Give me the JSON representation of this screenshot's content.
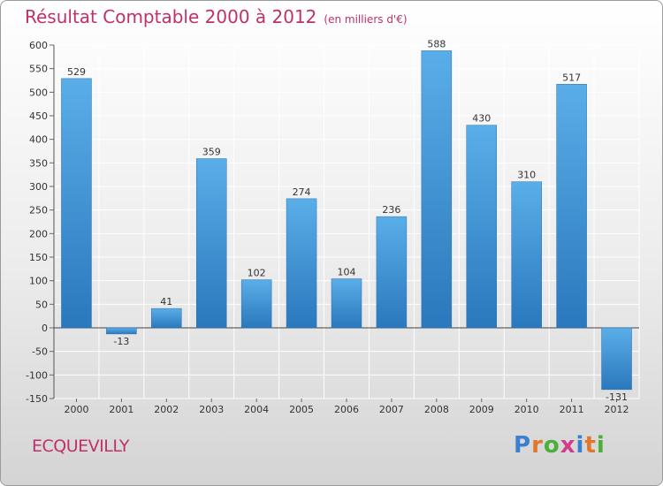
{
  "chart_data": {
    "type": "bar",
    "title": "Résultat Comptable 2000 à 2012",
    "subtitle": "(en milliers d'€)",
    "categories": [
      "2000",
      "2001",
      "2002",
      "2003",
      "2004",
      "2005",
      "2006",
      "2007",
      "2008",
      "2009",
      "2010",
      "2011",
      "2012"
    ],
    "values": [
      529,
      -13,
      41,
      359,
      102,
      274,
      104,
      236,
      588,
      430,
      310,
      517,
      -131
    ],
    "ylim": [
      -150,
      600
    ],
    "yticks": [
      -150,
      -100,
      -50,
      0,
      50,
      100,
      150,
      200,
      250,
      300,
      350,
      400,
      450,
      500,
      550,
      600
    ],
    "grid": true,
    "bar_color": "#3a8fd4"
  },
  "commune": "ECQUEVILLY",
  "logo": {
    "letters": [
      "P",
      "r",
      "o",
      "x",
      "i",
      "t",
      "i"
    ],
    "colors": [
      "#3a7fd0",
      "#e2762a",
      "#4caf3c",
      "#d23c8c",
      "#3a7fd0",
      "#e2762a",
      "#4caf3c"
    ]
  }
}
